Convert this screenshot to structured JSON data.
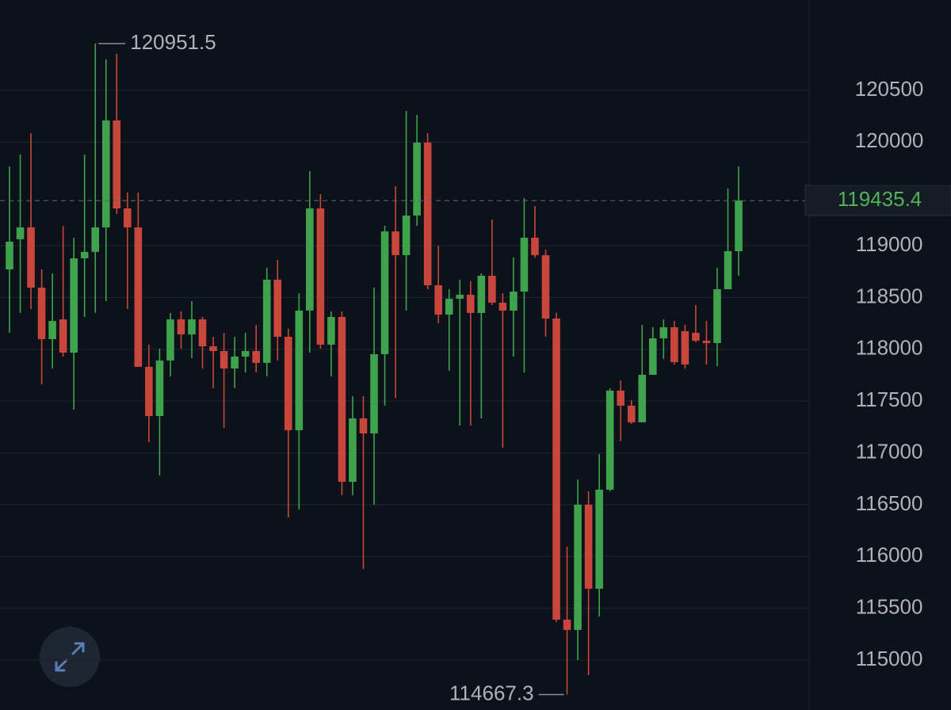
{
  "chart_data": {
    "type": "candlestick",
    "up_color": "#3ea34c",
    "down_color": "#c9463c",
    "grid": true,
    "ylim": [
      114518,
      121372
    ],
    "yticks": [
      115000,
      115500,
      116000,
      116500,
      117000,
      117500,
      118000,
      118500,
      119000,
      120000,
      120500
    ],
    "open": [
      118771,
      119062,
      119177,
      118595,
      118098,
      118289,
      117968,
      118878,
      118940,
      119177,
      120209,
      119360,
      119177,
      117831,
      117356,
      117892,
      118289,
      118144,
      118289,
      118029,
      117983,
      117815,
      117930,
      117983,
      117869,
      118672,
      118121,
      117219,
      118374,
      119360,
      118045,
      118312,
      116721,
      117333,
      117188,
      117953,
      119138,
      118909,
      119291,
      119995,
      118618,
      118335,
      118488,
      118527,
      118351,
      118710,
      118450,
      118374,
      118557,
      119077,
      118909,
      118297,
      115390,
      115291,
      116500,
      115689,
      116645,
      117601,
      117456,
      117295,
      117754,
      118106,
      118213,
      118175,
      118159,
      118083,
      118060,
      118580,
      118947
    ],
    "high": [
      119766,
      119880,
      120087,
      118771,
      118733,
      119192,
      119077,
      119880,
      120951.5,
      120798,
      120852,
      119513,
      119513,
      118045,
      118006,
      118351,
      118366,
      118465,
      118312,
      118121,
      118159,
      118121,
      118159,
      118236,
      118787,
      118863,
      118198,
      118542,
      119720,
      119498,
      118366,
      118366,
      117547,
      117547,
      118595,
      119192,
      119574,
      120301,
      120263,
      120087,
      119001,
      118580,
      118672,
      118657,
      118733,
      119253,
      118542,
      118886,
      119460,
      119383,
      118963,
      118351,
      116094,
      116744,
      116630,
      116989,
      117624,
      117700,
      117509,
      118236,
      118213,
      118289,
      118274,
      118236,
      118427,
      118274,
      118787,
      119552,
      119766
    ],
    "low": [
      118159,
      118351,
      118389,
      117662,
      117815,
      117930,
      117417,
      118312,
      118351,
      118465,
      119307,
      118389,
      117831,
      117104,
      116783,
      117739,
      118006,
      117915,
      117815,
      117624,
      117242,
      117624,
      117777,
      117777,
      117739,
      117892,
      116377,
      116454,
      117968,
      118006,
      117739,
      116591,
      116591,
      115880,
      116500,
      117456,
      117532,
      118374,
      119192,
      118580,
      118251,
      117792,
      117264,
      117264,
      117333,
      118427,
      117050,
      117930,
      117777,
      118886,
      118121,
      115368,
      114667.3,
      115000,
      114855,
      115421,
      116630,
      117112,
      117280,
      117295,
      117754,
      117907,
      117853,
      117815,
      118068,
      117853,
      117838,
      118580,
      118710
    ],
    "close": [
      119039,
      119177,
      118595,
      118098,
      118274,
      117968,
      118878,
      118940,
      119177,
      120209,
      119360,
      119177,
      117831,
      117356,
      117892,
      118289,
      118144,
      118289,
      118029,
      117983,
      117815,
      117930,
      117983,
      117869,
      118672,
      118121,
      117219,
      118374,
      119360,
      118045,
      118312,
      116721,
      117333,
      117188,
      117953,
      119138,
      118909,
      119291,
      119995,
      118618,
      118335,
      118488,
      118527,
      118351,
      118710,
      118450,
      118374,
      118557,
      119077,
      118909,
      118297,
      115390,
      115291,
      116500,
      115689,
      116645,
      117601,
      117456,
      117295,
      117754,
      118106,
      118213,
      117876,
      117853,
      118083,
      118060,
      118580,
      118947,
      119435.4
    ]
  }
}
